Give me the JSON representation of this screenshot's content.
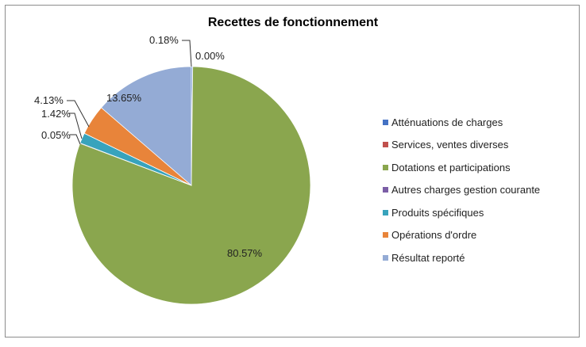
{
  "chart_data": {
    "type": "pie",
    "title": "Recettes de fonctionnement",
    "start_angle_deg": 0,
    "direction": "clockwise",
    "legend_position": "right",
    "slices": [
      {
        "name": "Atténuations de charges",
        "value": 0.18,
        "label": "0.18%",
        "color": "#4472c4"
      },
      {
        "name": "Services, ventes diverses",
        "value": 0.0,
        "label": "0.00%",
        "color": "#c0504d"
      },
      {
        "name": "Dotations et participations",
        "value": 80.57,
        "label": "80.57%",
        "color": "#8aa64e"
      },
      {
        "name": "Autres charges gestion courante",
        "value": 0.05,
        "label": "0.05%",
        "color": "#7b5ea6"
      },
      {
        "name": "Produits spécifiques",
        "value": 1.42,
        "label": "1.42%",
        "color": "#38a3bc"
      },
      {
        "name": "Opérations d'ordre",
        "value": 4.13,
        "label": "4.13%",
        "color": "#e8843a"
      },
      {
        "name": "Résultat reporté",
        "value": 13.65,
        "label": "13.65%",
        "color": "#94abd5"
      }
    ]
  }
}
